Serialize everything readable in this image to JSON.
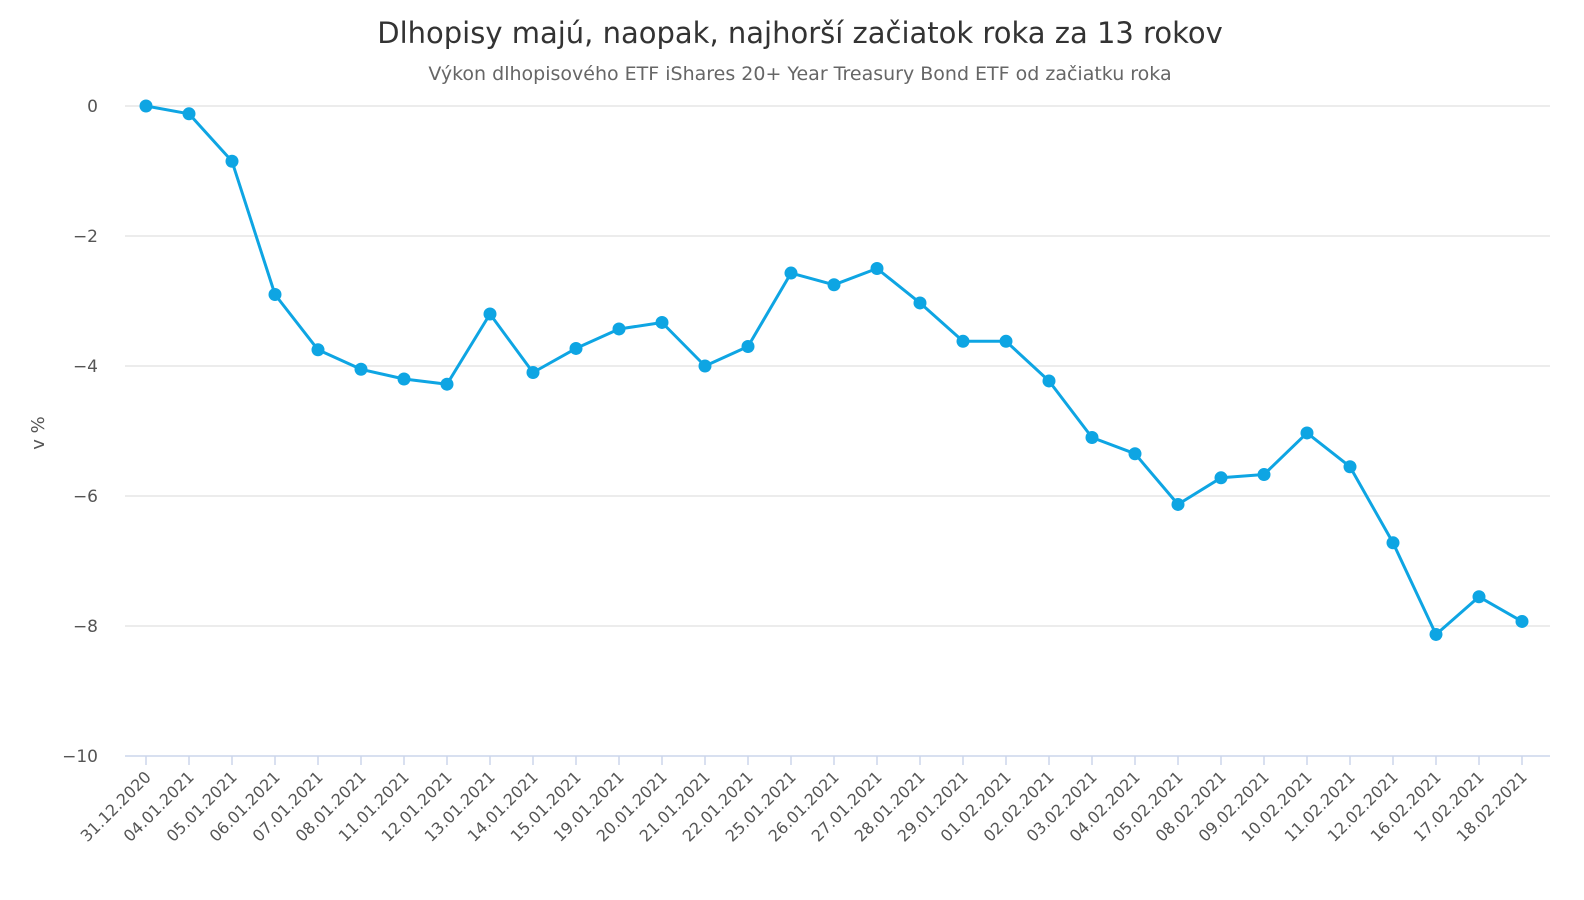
{
  "chart_data": {
    "type": "line",
    "title": "Dlhopisy majú, naopak, najhorší začiatok roka za 13 rokov",
    "subtitle": "Výkon dlhopisového ETF iShares 20+ Year Treasury Bond ETF od začiatku roka",
    "xlabel": "",
    "ylabel": "v %",
    "ylim": [
      -10,
      0
    ],
    "yticks": [
      0,
      -2,
      -4,
      -6,
      -8,
      -10
    ],
    "ytick_labels": [
      "0",
      "−2",
      "−4",
      "−6",
      "−8",
      "−10"
    ],
    "grid": true,
    "legend": "none",
    "color": "#0ea5e3",
    "categories": [
      "31.12.2020",
      "04.01.2021",
      "05.01.2021",
      "06.01.2021",
      "07.01.2021",
      "08.01.2021",
      "11.01.2021",
      "12.01.2021",
      "13.01.2021",
      "14.01.2021",
      "15.01.2021",
      "19.01.2021",
      "20.01.2021",
      "21.01.2021",
      "22.01.2021",
      "25.01.2021",
      "26.01.2021",
      "27.01.2021",
      "28.01.2021",
      "29.01.2021",
      "01.02.2021",
      "02.02.2021",
      "03.02.2021",
      "04.02.2021",
      "05.02.2021",
      "08.02.2021",
      "09.02.2021",
      "10.02.2021",
      "11.02.2021",
      "12.02.2021",
      "16.02.2021",
      "17.02.2021",
      "18.02.2021"
    ],
    "values": [
      0,
      -0.12,
      -0.85,
      -2.9,
      -3.75,
      -4.05,
      -4.2,
      -4.28,
      -3.2,
      -4.1,
      -3.73,
      -3.43,
      -3.33,
      -4.0,
      -3.7,
      -2.57,
      -2.75,
      -2.5,
      -3.03,
      -3.62,
      -3.62,
      -4.23,
      -5.1,
      -5.35,
      -6.13,
      -5.72,
      -5.67,
      -5.03,
      -5.55,
      -6.72,
      -8.13,
      -7.55,
      -7.93
    ]
  }
}
